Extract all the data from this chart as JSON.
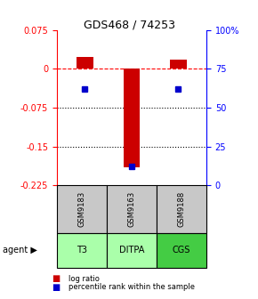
{
  "title": "GDS468 / 74253",
  "samples": [
    "GSM9183",
    "GSM9163",
    "GSM9188"
  ],
  "agents": [
    "T3",
    "DITPA",
    "CGS"
  ],
  "log_ratios": [
    0.022,
    -0.19,
    0.018
  ],
  "percentile_ranks": [
    62,
    12,
    62
  ],
  "ylim_left": [
    -0.225,
    0.075
  ],
  "ylim_right": [
    0,
    100
  ],
  "left_ticks": [
    0.075,
    0,
    -0.075,
    -0.15,
    -0.225
  ],
  "right_ticks": [
    100,
    75,
    50,
    25,
    0
  ],
  "agent_colors": [
    "#aaffaa",
    "#aaffaa",
    "#44cc44"
  ],
  "sample_color": "#C8C8C8",
  "bar_color": "#CC0000",
  "dot_color": "#0000CC",
  "background_color": "#ffffff"
}
